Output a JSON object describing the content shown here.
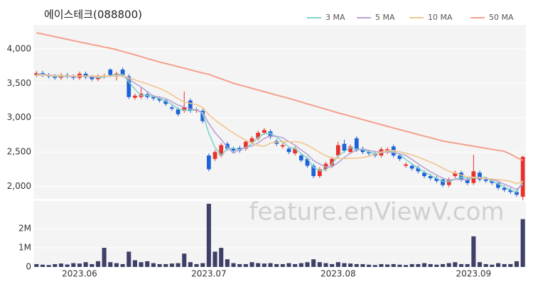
{
  "chart_data": [
    {
      "type": "candlestick",
      "title": "에이스테크(088800)",
      "up_color": "#e8322b",
      "down_color": "#1c62d8",
      "open": [
        3620,
        3650,
        3620,
        3600,
        3580,
        3620,
        3600,
        3580,
        3640,
        3590,
        3560,
        3600,
        3700,
        3600,
        3700,
        3600,
        3290,
        3300,
        3340,
        3300,
        3280,
        3250,
        3150,
        3120,
        3100,
        3250,
        3100,
        3100,
        2450,
        2400,
        2450,
        2620,
        2550,
        2560,
        2550,
        2650,
        2700,
        2780,
        2800,
        2660,
        2580,
        2550,
        2480,
        2450,
        2400,
        2300,
        2150,
        2250,
        2300,
        2450,
        2620,
        2500,
        2700,
        2550,
        2500,
        2480,
        2450,
        2500,
        2580,
        2450,
        2300,
        2300,
        2270,
        2200,
        2150,
        2120,
        2100,
        2020,
        2150,
        2200,
        2100,
        2050,
        2200,
        2100,
        2080,
        2050,
        1980,
        1950,
        1920,
        1850
      ],
      "high": [
        3680,
        3680,
        3650,
        3630,
        3650,
        3650,
        3630,
        3670,
        3670,
        3620,
        3630,
        3640,
        3720,
        3670,
        3730,
        3630,
        3350,
        3450,
        3370,
        3330,
        3310,
        3280,
        3180,
        3150,
        3380,
        3280,
        3150,
        3130,
        2480,
        2530,
        2630,
        2650,
        2580,
        2590,
        2680,
        2730,
        2810,
        2850,
        2830,
        2690,
        2630,
        2580,
        2580,
        2480,
        2430,
        2330,
        2280,
        2360,
        2430,
        2650,
        2680,
        2610,
        2730,
        2580,
        2530,
        2510,
        2570,
        2570,
        2610,
        2480,
        2350,
        2330,
        2300,
        2230,
        2180,
        2150,
        2130,
        2130,
        2230,
        2230,
        2130,
        2460,
        2230,
        2130,
        2110,
        2080,
        2010,
        1980,
        1950,
        2450
      ],
      "low": [
        3590,
        3590,
        3570,
        3550,
        3550,
        3570,
        3550,
        3550,
        3560,
        3530,
        3530,
        3570,
        3590,
        3540,
        3590,
        3270,
        3260,
        3270,
        3270,
        3250,
        3220,
        3170,
        3100,
        3020,
        3070,
        3070,
        3070,
        2920,
        2220,
        2370,
        2420,
        2520,
        2490,
        2490,
        2520,
        2620,
        2670,
        2750,
        2690,
        2590,
        2550,
        2470,
        2450,
        2350,
        2270,
        2120,
        2120,
        2220,
        2270,
        2420,
        2490,
        2470,
        2500,
        2470,
        2450,
        2420,
        2420,
        2470,
        2420,
        2370,
        2270,
        2230,
        2190,
        2120,
        2090,
        2050,
        1990,
        1990,
        2120,
        2070,
        2020,
        2020,
        2070,
        2050,
        2020,
        1950,
        1920,
        1890,
        1850,
        1800
      ],
      "close": [
        3650,
        3620,
        3600,
        3580,
        3620,
        3600,
        3580,
        3640,
        3590,
        3560,
        3600,
        3610,
        3620,
        3640,
        3620,
        3300,
        3320,
        3350,
        3300,
        3280,
        3250,
        3200,
        3130,
        3050,
        3150,
        3100,
        3120,
        2950,
        2250,
        2500,
        2600,
        2550,
        2520,
        2520,
        2650,
        2700,
        2780,
        2820,
        2720,
        2620,
        2600,
        2500,
        2550,
        2380,
        2300,
        2150,
        2250,
        2330,
        2400,
        2600,
        2520,
        2580,
        2530,
        2500,
        2480,
        2450,
        2540,
        2540,
        2450,
        2400,
        2320,
        2260,
        2220,
        2150,
        2120,
        2080,
        2020,
        2100,
        2200,
        2100,
        2050,
        2220,
        2100,
        2080,
        2050,
        1980,
        1950,
        1920,
        1880,
        2430
      ],
      "series": [
        {
          "name": "3 MA",
          "color": "#7fd3c9",
          "values": [
            3640,
            3630,
            3623,
            3600,
            3600,
            3600,
            3600,
            3607,
            3603,
            3597,
            3583,
            3590,
            3610,
            3623,
            3627,
            3520,
            3413,
            3323,
            3323,
            3310,
            3277,
            3243,
            3193,
            3127,
            3110,
            3100,
            3123,
            3057,
            2773,
            2567,
            2450,
            2550,
            2557,
            2530,
            2563,
            2623,
            2710,
            2767,
            2773,
            2720,
            2647,
            2573,
            2550,
            2477,
            2410,
            2277,
            2233,
            2243,
            2327,
            2443,
            2507,
            2567,
            2543,
            2537,
            2503,
            2477,
            2490,
            2510,
            2510,
            2463,
            2390,
            2327,
            2267,
            2210,
            2163,
            2117,
            2073,
            2067,
            2107,
            2133,
            2117,
            2123,
            2123,
            2133,
            2077,
            2037,
            1993,
            1950,
            1917,
            2077
          ]
        },
        {
          "name": "5 MA",
          "color": "#b9a3d3",
          "values": [
            3630,
            3625,
            3620,
            3615,
            3614,
            3604,
            3596,
            3604,
            3606,
            3594,
            3594,
            3600,
            3604,
            3606,
            3618,
            3558,
            3500,
            3446,
            3378,
            3310,
            3300,
            3276,
            3232,
            3182,
            3156,
            3126,
            3110,
            3074,
            2914,
            2784,
            2684,
            2570,
            2484,
            2538,
            2568,
            2588,
            2634,
            2698,
            2734,
            2728,
            2708,
            2652,
            2598,
            2530,
            2466,
            2376,
            2326,
            2282,
            2286,
            2346,
            2420,
            2486,
            2526,
            2546,
            2522,
            2508,
            2500,
            2502,
            2492,
            2476,
            2450,
            2392,
            2330,
            2270,
            2214,
            2166,
            2118,
            2094,
            2104,
            2100,
            2094,
            2134,
            2134,
            2110,
            2100,
            2076,
            2032,
            1996,
            1956,
            2032
          ]
        },
        {
          "name": "10 MA",
          "color": "#f1c58e",
          "values": [
            3615,
            3618,
            3614,
            3610,
            3612,
            3610,
            3608,
            3607,
            3606,
            3604,
            3603,
            3603,
            3605,
            3609,
            3609,
            3580,
            3550,
            3520,
            3490,
            3460,
            3425,
            3385,
            3335,
            3276,
            3229,
            3209,
            3189,
            3149,
            3044,
            2966,
            2901,
            2836,
            2775,
            2721,
            2671,
            2631,
            2597,
            2584,
            2631,
            2643,
            2653,
            2648,
            2651,
            2637,
            2602,
            2547,
            2494,
            2445,
            2413,
            2411,
            2403,
            2411,
            2409,
            2421,
            2439,
            2469,
            2498,
            2519,
            2524,
            2504,
            2484,
            2458,
            2427,
            2389,
            2353,
            2316,
            2264,
            2220,
            2195,
            2165,
            2138,
            2134,
            2122,
            2115,
            2108,
            2098,
            2091,
            2073,
            2041,
            2074
          ]
        },
        {
          "name": "50 MA",
          "color": "#f4a08c",
          "values": [
            4235,
            4216,
            4197,
            4178,
            4158,
            4139,
            4120,
            4101,
            4083,
            4064,
            4046,
            4027,
            4009,
            3990,
            3964,
            3939,
            3913,
            3887,
            3861,
            3836,
            3810,
            3787,
            3764,
            3741,
            3719,
            3696,
            3673,
            3650,
            3630,
            3597,
            3565,
            3532,
            3500,
            3476,
            3451,
            3427,
            3402,
            3378,
            3353,
            3329,
            3304,
            3280,
            3254,
            3228,
            3201,
            3175,
            3149,
            3123,
            3096,
            3070,
            3046,
            3021,
            2997,
            2972,
            2948,
            2923,
            2899,
            2874,
            2850,
            2826,
            2803,
            2779,
            2755,
            2731,
            2708,
            2684,
            2660,
            2645,
            2630,
            2615,
            2600,
            2585,
            2570,
            2555,
            2540,
            2525,
            2510,
            2470,
            2420,
            2380
          ]
        }
      ],
      "ylim": [
        1820,
        4350
      ],
      "yticks": [
        {
          "value": 2000,
          "label": "2,000"
        },
        {
          "value": 2500,
          "label": "2,500"
        },
        {
          "value": 3000,
          "label": "3,000"
        },
        {
          "value": 3500,
          "label": "3,500"
        },
        {
          "value": 4000,
          "label": "4,000"
        }
      ],
      "grid": true,
      "legend": "top-right",
      "watermark": "feature.enViewV.com"
    },
    {
      "type": "bar",
      "color": "#3e4068",
      "categories": [
        null,
        null,
        null,
        null,
        null,
        null,
        null,
        "2023.06",
        null,
        null,
        null,
        null,
        null,
        null,
        null,
        null,
        null,
        null,
        null,
        null,
        null,
        null,
        null,
        null,
        null,
        null,
        null,
        null,
        "2023.07",
        null,
        null,
        null,
        null,
        null,
        null,
        null,
        null,
        null,
        null,
        null,
        null,
        null,
        null,
        null,
        null,
        null,
        null,
        null,
        null,
        "2023.08",
        null,
        null,
        null,
        null,
        null,
        null,
        null,
        null,
        null,
        null,
        null,
        null,
        null,
        null,
        null,
        null,
        null,
        null,
        null,
        null,
        null,
        "2023.09",
        null,
        null,
        null,
        null,
        null,
        null,
        null,
        null
      ],
      "values": [
        150000,
        120000,
        100000,
        150000,
        180000,
        130000,
        200000,
        180000,
        250000,
        150000,
        300000,
        1000000,
        250000,
        200000,
        150000,
        800000,
        350000,
        250000,
        300000,
        200000,
        150000,
        150000,
        180000,
        200000,
        700000,
        250000,
        150000,
        200000,
        3300000,
        800000,
        1000000,
        400000,
        200000,
        150000,
        150000,
        250000,
        200000,
        180000,
        200000,
        150000,
        150000,
        200000,
        150000,
        200000,
        250000,
        400000,
        250000,
        200000,
        150000,
        250000,
        200000,
        180000,
        150000,
        150000,
        120000,
        100000,
        150000,
        130000,
        150000,
        120000,
        100000,
        150000,
        150000,
        200000,
        150000,
        120000,
        150000,
        200000,
        250000,
        150000,
        150000,
        1600000,
        250000,
        150000,
        120000,
        200000,
        150000,
        150000,
        300000,
        2500000
      ],
      "ylim": [
        0,
        3450000
      ],
      "yticks": [
        0,
        {
          "value": 1000000,
          "label": "1M"
        },
        {
          "value": 2000000,
          "label": "2M"
        }
      ],
      "grid": true
    }
  ]
}
